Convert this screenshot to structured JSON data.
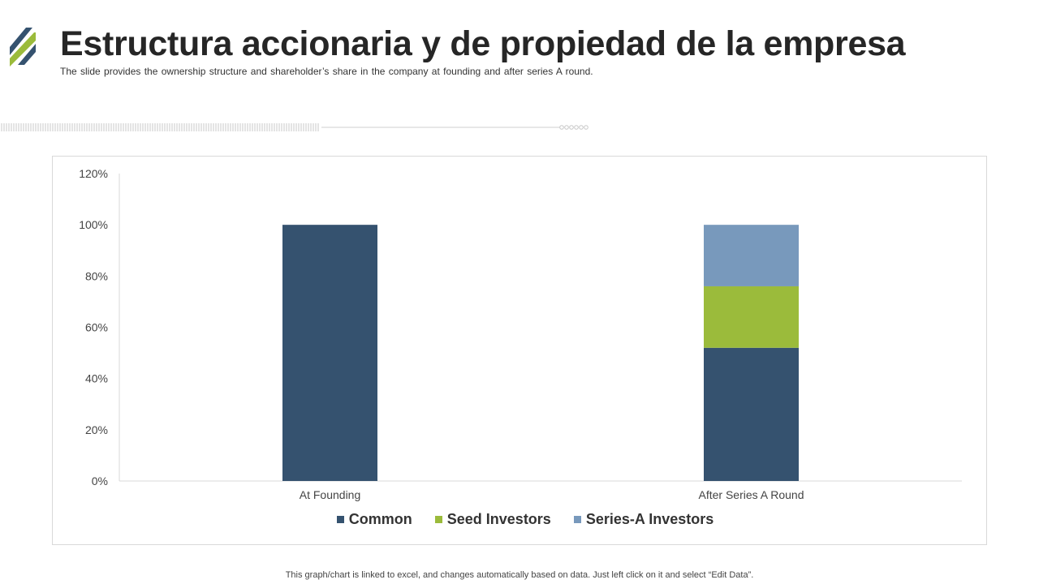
{
  "header": {
    "title": "Estructura accionaria y de propiedad de la empresa",
    "subtitle": "The slide provides  the ownership  structure  and shareholder’s  share  in the company at founding  and after  series  A round."
  },
  "colors": {
    "accent_dark": "#35526F",
    "accent_green": "#9BBB3B",
    "accent_light": "#7899BC"
  },
  "icons": {
    "logo": "diagonal-stripes-logo"
  },
  "chart_data": {
    "type": "bar",
    "stacked": true,
    "categories": [
      "At Founding",
      "After Series A Round"
    ],
    "series": [
      {
        "name": "Common",
        "values": [
          100,
          52
        ],
        "color": "#35526F"
      },
      {
        "name": "Seed Investors",
        "values": [
          0,
          24
        ],
        "color": "#9BBB3B"
      },
      {
        "name": "Series-A Investors",
        "values": [
          0,
          24
        ],
        "color": "#7899BC"
      }
    ],
    "ylim": [
      0,
      120
    ],
    "yticks": [
      0,
      20,
      40,
      60,
      80,
      100,
      120
    ],
    "ytick_labels": [
      "0%",
      "20%",
      "40%",
      "60%",
      "80%",
      "100%",
      "120%"
    ],
    "grid": false,
    "legend_position": "bottom"
  },
  "footnote": "This graph/chart is linked to excel,  and changes automatically based on data. Just left click on it and select “Edit Data”."
}
